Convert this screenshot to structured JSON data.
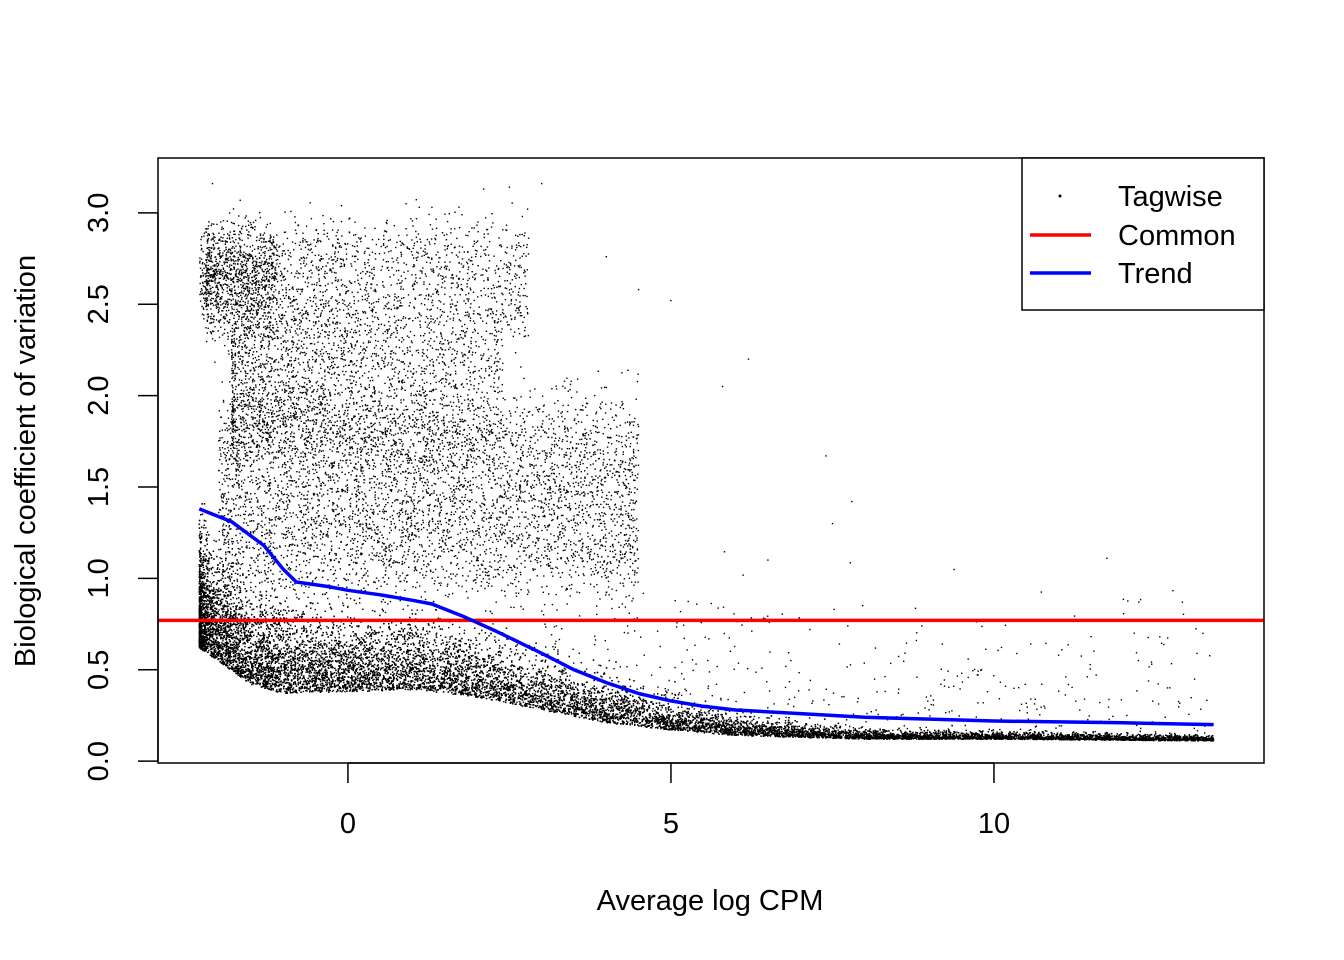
{
  "chart_data": {
    "type": "scatter",
    "title": "",
    "xlabel": "Average log CPM",
    "ylabel": "Biological coefficient of variation",
    "xlim": [
      -2.94,
      14.18
    ],
    "ylim": [
      -0.01,
      3.3
    ],
    "x_ticks": [
      {
        "value": 0,
        "label": "0"
      },
      {
        "value": 5,
        "label": "5"
      },
      {
        "value": 10,
        "label": "10"
      }
    ],
    "y_ticks": [
      {
        "value": 0.0,
        "label": "0.0"
      },
      {
        "value": 0.5,
        "label": "0.5"
      },
      {
        "value": 1.0,
        "label": "1.0"
      },
      {
        "value": 1.5,
        "label": "1.5"
      },
      {
        "value": 2.0,
        "label": "2.0"
      },
      {
        "value": 2.5,
        "label": "2.5"
      },
      {
        "value": 3.0,
        "label": "3.0"
      }
    ],
    "grid": false,
    "legend": {
      "position": "top-right",
      "entries": [
        {
          "label": "Tagwise",
          "symbol": "point",
          "color": "#000000"
        },
        {
          "label": "Common",
          "symbol": "line",
          "color": "#ff0000"
        },
        {
          "label": "Trend",
          "symbol": "line",
          "color": "#0000ff"
        }
      ]
    },
    "series": [
      {
        "name": "Common",
        "kind": "hline",
        "color": "#ff0000",
        "y": 0.77
      },
      {
        "name": "Trend",
        "kind": "line",
        "color": "#0000ff",
        "points": [
          [
            -2.3,
            1.38
          ],
          [
            -1.8,
            1.31
          ],
          [
            -1.3,
            1.18
          ],
          [
            -1.0,
            1.05
          ],
          [
            -0.8,
            0.98
          ],
          [
            -0.3,
            0.955
          ],
          [
            0.0,
            0.935
          ],
          [
            0.5,
            0.91
          ],
          [
            1.0,
            0.88
          ],
          [
            1.3,
            0.86
          ],
          [
            1.8,
            0.79
          ],
          [
            2.3,
            0.71
          ],
          [
            3.0,
            0.59
          ],
          [
            3.5,
            0.5
          ],
          [
            4.0,
            0.43
          ],
          [
            4.5,
            0.37
          ],
          [
            5.0,
            0.33
          ],
          [
            5.5,
            0.3
          ],
          [
            6.0,
            0.28
          ],
          [
            7.0,
            0.26
          ],
          [
            8.0,
            0.24
          ],
          [
            9.0,
            0.23
          ],
          [
            10.0,
            0.22
          ],
          [
            11.0,
            0.215
          ],
          [
            12.0,
            0.21
          ],
          [
            13.4,
            0.2
          ]
        ]
      },
      {
        "name": "Tagwise",
        "kind": "points",
        "color": "#000000",
        "x_range": [
          -2.3,
          13.4
        ],
        "y_range": [
          0.08,
          3.16
        ],
        "outliers": [
          [
            -2.0,
            0.88
          ],
          [
            -1.5,
            2.92
          ],
          [
            0.9,
            3.05
          ],
          [
            1.3,
            3.03
          ],
          [
            2.1,
            3.13
          ],
          [
            2.5,
            3.14
          ],
          [
            3.0,
            3.16
          ],
          [
            2.7,
            2.98
          ],
          [
            4.0,
            2.76
          ],
          [
            4.5,
            2.58
          ],
          [
            5.0,
            2.52
          ],
          [
            6.2,
            2.2
          ],
          [
            5.8,
            2.05
          ],
          [
            7.4,
            1.67
          ],
          [
            7.8,
            1.42
          ],
          [
            7.5,
            1.3
          ],
          [
            6.5,
            1.1
          ],
          [
            8.8,
            0.66
          ],
          [
            9.2,
            0.64
          ],
          [
            9.9,
            0.38
          ],
          [
            11.0,
            0.58
          ],
          [
            12.5,
            0.16
          ],
          [
            13.3,
            0.12
          ]
        ]
      }
    ]
  }
}
